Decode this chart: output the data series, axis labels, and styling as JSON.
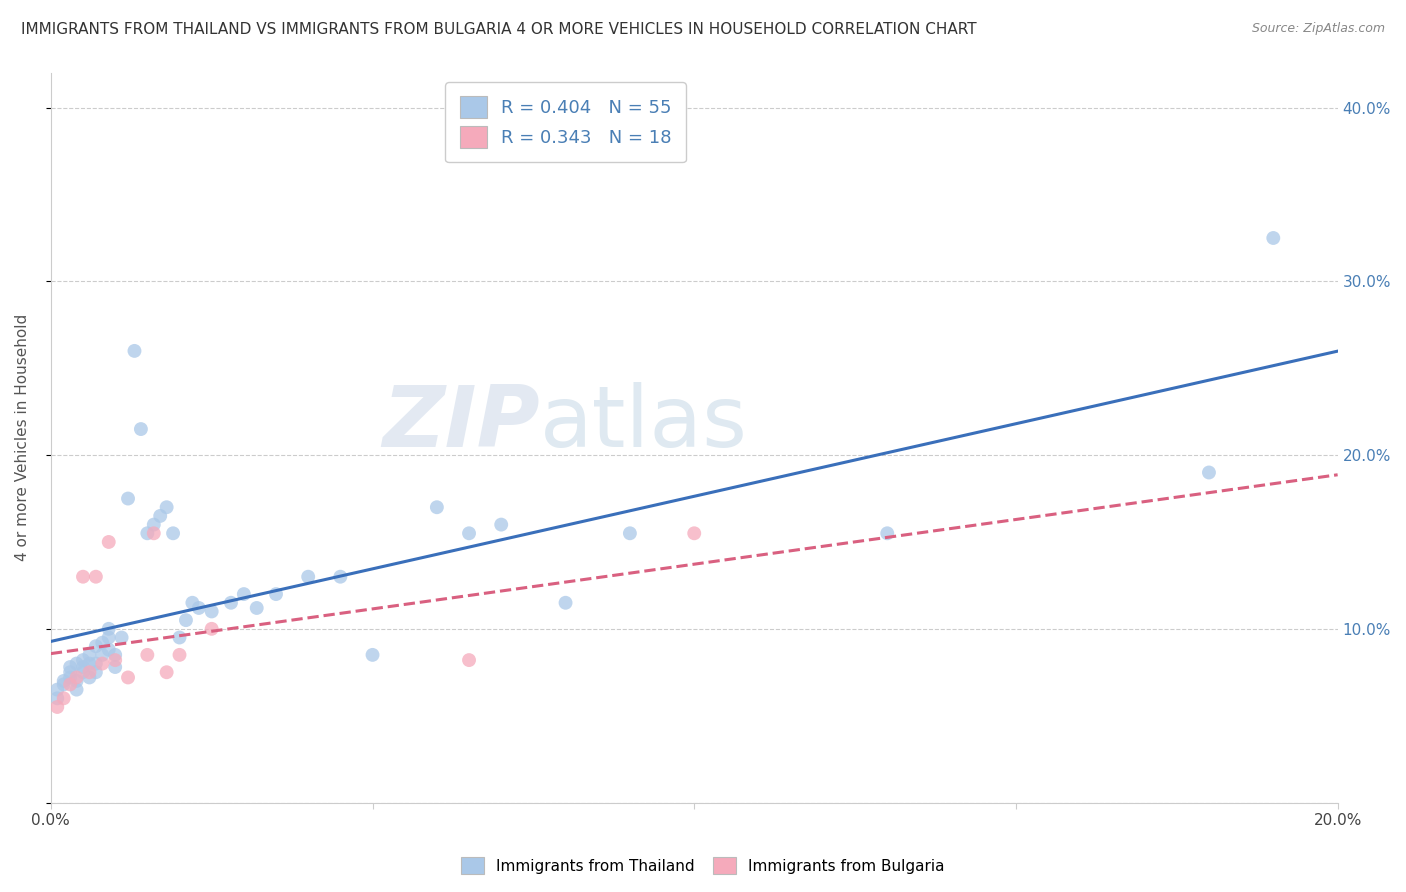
{
  "title": "IMMIGRANTS FROM THAILAND VS IMMIGRANTS FROM BULGARIA 4 OR MORE VEHICLES IN HOUSEHOLD CORRELATION CHART",
  "source": "Source: ZipAtlas.com",
  "ylabel": "4 or more Vehicles in Household",
  "xmin": 0.0,
  "xmax": 0.2,
  "ymin": 0.0,
  "ymax": 0.42,
  "yticks": [
    0.0,
    0.1,
    0.2,
    0.3,
    0.4
  ],
  "ytick_labels_right": [
    "",
    "10.0%",
    "20.0%",
    "30.0%",
    "40.0%"
  ],
  "xticks": [
    0.0,
    0.05,
    0.1,
    0.15,
    0.2
  ],
  "xtick_labels": [
    "0.0%",
    "",
    "",
    "",
    "20.0%"
  ],
  "R_thailand": 0.404,
  "N_thailand": 55,
  "R_bulgaria": 0.343,
  "N_bulgaria": 18,
  "color_thailand": "#aac8e8",
  "color_bulgaria": "#f5aabb",
  "line_color_thailand": "#3a6fba",
  "line_color_bulgaria": "#d96080",
  "watermark_zip": "ZIP",
  "watermark_atlas": "atlas",
  "legend_label_thailand": "Immigrants from Thailand",
  "legend_label_bulgaria": "Immigrants from Bulgaria",
  "thailand_x": [
    0.001,
    0.001,
    0.002,
    0.002,
    0.003,
    0.003,
    0.003,
    0.004,
    0.004,
    0.004,
    0.005,
    0.005,
    0.005,
    0.006,
    0.006,
    0.006,
    0.007,
    0.007,
    0.007,
    0.008,
    0.008,
    0.009,
    0.009,
    0.009,
    0.01,
    0.01,
    0.011,
    0.012,
    0.013,
    0.014,
    0.015,
    0.016,
    0.017,
    0.018,
    0.019,
    0.02,
    0.021,
    0.022,
    0.023,
    0.025,
    0.028,
    0.03,
    0.032,
    0.035,
    0.04,
    0.045,
    0.05,
    0.06,
    0.065,
    0.07,
    0.08,
    0.09,
    0.13,
    0.18,
    0.19
  ],
  "thailand_y": [
    0.06,
    0.065,
    0.07,
    0.068,
    0.072,
    0.075,
    0.078,
    0.065,
    0.07,
    0.08,
    0.075,
    0.082,
    0.078,
    0.072,
    0.08,
    0.085,
    0.08,
    0.075,
    0.09,
    0.085,
    0.092,
    0.088,
    0.095,
    0.1,
    0.085,
    0.078,
    0.095,
    0.175,
    0.26,
    0.215,
    0.155,
    0.16,
    0.165,
    0.17,
    0.155,
    0.095,
    0.105,
    0.115,
    0.112,
    0.11,
    0.115,
    0.12,
    0.112,
    0.12,
    0.13,
    0.13,
    0.085,
    0.17,
    0.155,
    0.16,
    0.115,
    0.155,
    0.155,
    0.19,
    0.325
  ],
  "bulgaria_x": [
    0.001,
    0.002,
    0.003,
    0.004,
    0.005,
    0.006,
    0.007,
    0.008,
    0.009,
    0.01,
    0.012,
    0.015,
    0.016,
    0.018,
    0.02,
    0.025,
    0.065,
    0.1
  ],
  "bulgaria_y": [
    0.055,
    0.06,
    0.068,
    0.072,
    0.13,
    0.075,
    0.13,
    0.08,
    0.15,
    0.082,
    0.072,
    0.085,
    0.155,
    0.075,
    0.085,
    0.1,
    0.082,
    0.155
  ]
}
